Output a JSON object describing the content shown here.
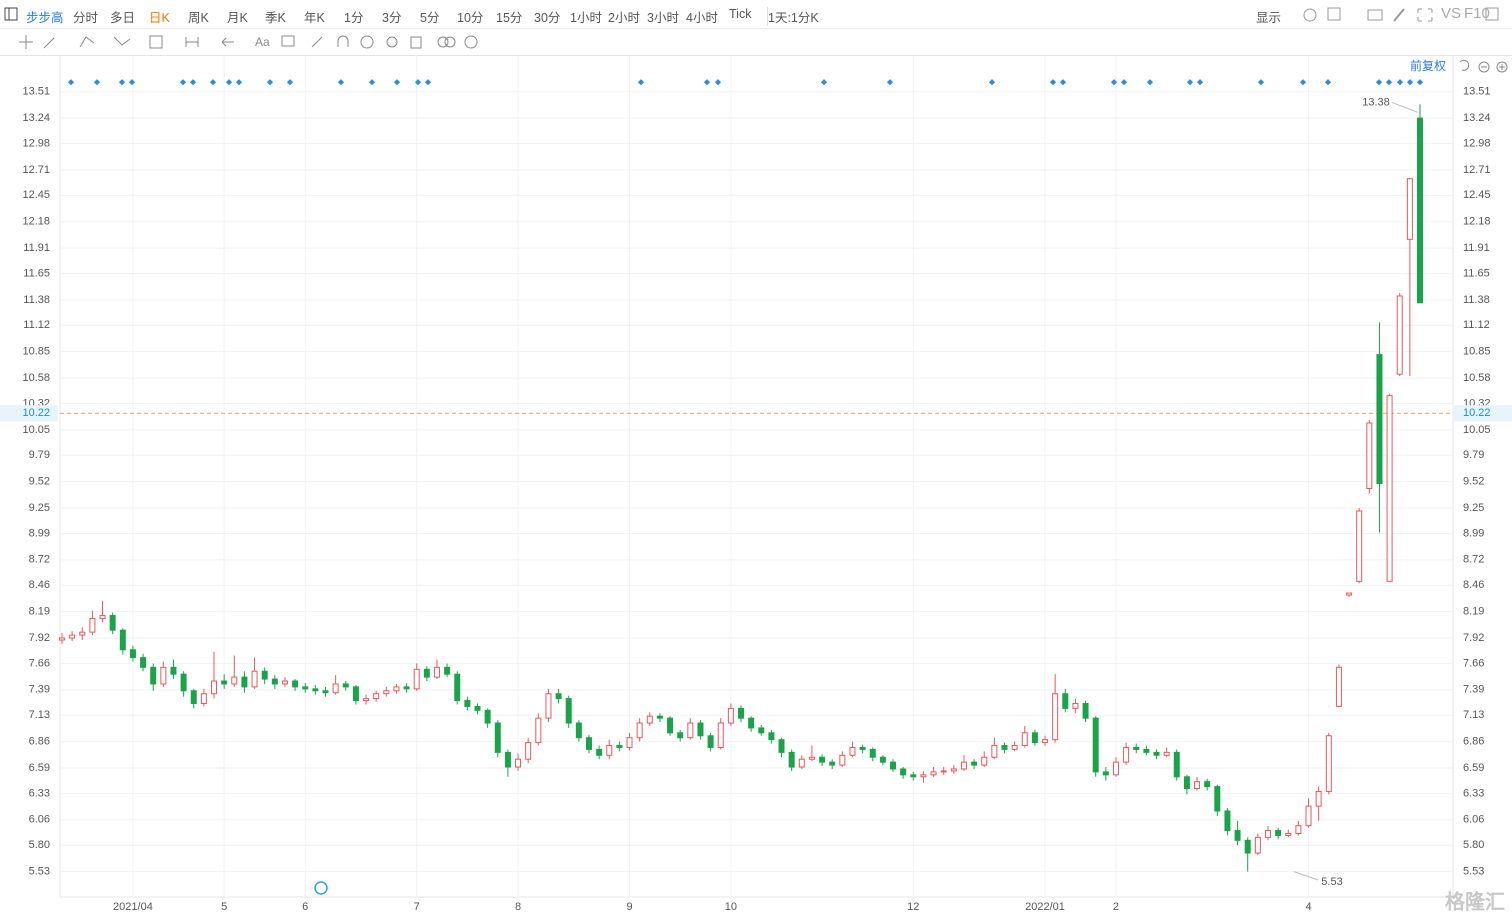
{
  "toolbar": {
    "symbol": "步步高",
    "periods": [
      "分时",
      "多日",
      "日K",
      "周K",
      "月K",
      "季K",
      "年K",
      "1分",
      "3分",
      "5分",
      "10分",
      "15分",
      "30分",
      "1小时",
      "2小时",
      "3小时",
      "4小时",
      "Tick"
    ],
    "interval": "1天:1分K",
    "display": "显示",
    "vs": "VS",
    "f10": "F10"
  },
  "adjust": "前复权",
  "watermark": "格隆汇",
  "chart_data": {
    "type": "candlestick",
    "categories": [
      null,
      null,
      null,
      null,
      null,
      null,
      null,
      "2021/04",
      null,
      null,
      null,
      null,
      null,
      null,
      null,
      null,
      "5",
      null,
      null,
      null,
      null,
      null,
      null,
      null,
      "6",
      null,
      null,
      null,
      null,
      null,
      null,
      null,
      null,
      null,
      null,
      "7",
      null,
      null,
      null,
      null,
      null,
      null,
      null,
      null,
      null,
      "8",
      null,
      null,
      null,
      null,
      null,
      null,
      null,
      null,
      null,
      null,
      "9",
      null,
      null,
      null,
      null,
      null,
      null,
      null,
      null,
      null,
      "10",
      null,
      null,
      null,
      null,
      null,
      null,
      null,
      null,
      null,
      null,
      null,
      null,
      null,
      null,
      null,
      null,
      null,
      "12",
      null,
      null,
      null,
      null,
      null,
      null,
      null,
      null,
      null,
      null,
      null,
      null,
      "2022/01",
      null,
      null,
      null,
      null,
      null,
      null,
      "2",
      null,
      null,
      null,
      null,
      null,
      null,
      null,
      null,
      null,
      null,
      null,
      null,
      null,
      null,
      null,
      null,
      null,
      null,
      "4",
      null,
      null,
      null,
      null,
      null,
      null,
      null,
      null,
      null,
      null,
      null
    ],
    "candles": [
      [
        7.9,
        7.97,
        7.86,
        7.92
      ],
      [
        7.92,
        7.99,
        7.89,
        7.95
      ],
      [
        7.95,
        8.03,
        7.9,
        7.98
      ],
      [
        7.98,
        8.2,
        7.95,
        8.12
      ],
      [
        8.12,
        8.3,
        8.08,
        8.15
      ],
      [
        8.15,
        8.18,
        7.96,
        8.0
      ],
      [
        8.0,
        8.02,
        7.75,
        7.8
      ],
      [
        7.8,
        7.84,
        7.68,
        7.72
      ],
      [
        7.72,
        7.76,
        7.58,
        7.62
      ],
      [
        7.62,
        7.66,
        7.38,
        7.45
      ],
      [
        7.45,
        7.68,
        7.42,
        7.62
      ],
      [
        7.62,
        7.7,
        7.5,
        7.55
      ],
      [
        7.55,
        7.58,
        7.32,
        7.38
      ],
      [
        7.38,
        7.4,
        7.2,
        7.25
      ],
      [
        7.25,
        7.4,
        7.22,
        7.35
      ],
      [
        7.35,
        7.78,
        7.3,
        7.48
      ],
      [
        7.48,
        7.55,
        7.4,
        7.45
      ],
      [
        7.45,
        7.74,
        7.42,
        7.52
      ],
      [
        7.52,
        7.58,
        7.36,
        7.42
      ],
      [
        7.42,
        7.72,
        7.4,
        7.58
      ],
      [
        7.58,
        7.62,
        7.45,
        7.5
      ],
      [
        7.5,
        7.54,
        7.4,
        7.45
      ],
      [
        7.45,
        7.52,
        7.42,
        7.48
      ],
      [
        7.48,
        7.5,
        7.38,
        7.42
      ],
      [
        7.42,
        7.46,
        7.36,
        7.4
      ],
      [
        7.4,
        7.44,
        7.34,
        7.38
      ],
      [
        7.38,
        7.42,
        7.32,
        7.36
      ],
      [
        7.36,
        7.54,
        7.34,
        7.45
      ],
      [
        7.45,
        7.48,
        7.38,
        7.42
      ],
      [
        7.42,
        7.44,
        7.24,
        7.28
      ],
      [
        7.28,
        7.34,
        7.24,
        7.3
      ],
      [
        7.3,
        7.38,
        7.27,
        7.35
      ],
      [
        7.35,
        7.42,
        7.32,
        7.38
      ],
      [
        7.38,
        7.45,
        7.35,
        7.42
      ],
      [
        7.42,
        7.46,
        7.36,
        7.4
      ],
      [
        7.4,
        7.66,
        7.38,
        7.6
      ],
      [
        7.6,
        7.63,
        7.48,
        7.52
      ],
      [
        7.52,
        7.7,
        7.5,
        7.62
      ],
      [
        7.62,
        7.66,
        7.52,
        7.55
      ],
      [
        7.55,
        7.58,
        7.24,
        7.28
      ],
      [
        7.28,
        7.32,
        7.18,
        7.22
      ],
      [
        7.22,
        7.25,
        7.14,
        7.18
      ],
      [
        7.18,
        7.2,
        7.0,
        7.05
      ],
      [
        7.05,
        7.08,
        6.7,
        6.75
      ],
      [
        6.75,
        6.78,
        6.5,
        6.6
      ],
      [
        6.6,
        6.74,
        6.56,
        6.68
      ],
      [
        6.68,
        6.9,
        6.64,
        6.85
      ],
      [
        6.85,
        7.15,
        6.82,
        7.1
      ],
      [
        7.1,
        7.4,
        7.06,
        7.35
      ],
      [
        7.35,
        7.4,
        7.25,
        7.3
      ],
      [
        7.3,
        7.33,
        7.0,
        7.05
      ],
      [
        7.05,
        7.08,
        6.86,
        6.9
      ],
      [
        6.9,
        6.93,
        6.74,
        6.78
      ],
      [
        6.78,
        6.82,
        6.68,
        6.72
      ],
      [
        6.72,
        6.88,
        6.68,
        6.82
      ],
      [
        6.82,
        6.86,
        6.76,
        6.8
      ],
      [
        6.8,
        6.95,
        6.77,
        6.9
      ],
      [
        6.9,
        7.1,
        6.86,
        7.05
      ],
      [
        7.05,
        7.16,
        7.02,
        7.12
      ],
      [
        7.12,
        7.15,
        7.06,
        7.1
      ],
      [
        7.1,
        7.12,
        6.92,
        6.95
      ],
      [
        6.95,
        6.98,
        6.86,
        6.9
      ],
      [
        6.9,
        7.1,
        6.88,
        7.05
      ],
      [
        7.05,
        7.08,
        6.88,
        6.92
      ],
      [
        6.92,
        6.95,
        6.76,
        6.8
      ],
      [
        6.8,
        7.1,
        6.78,
        7.05
      ],
      [
        7.05,
        7.25,
        7.02,
        7.2
      ],
      [
        7.2,
        7.23,
        7.06,
        7.1
      ],
      [
        7.1,
        7.12,
        6.96,
        7.0
      ],
      [
        7.0,
        7.03,
        6.92,
        6.95
      ],
      [
        6.95,
        6.98,
        6.84,
        6.88
      ],
      [
        6.88,
        6.9,
        6.7,
        6.75
      ],
      [
        6.75,
        6.78,
        6.56,
        6.6
      ],
      [
        6.6,
        6.72,
        6.58,
        6.68
      ],
      [
        6.68,
        6.82,
        6.66,
        6.7
      ],
      [
        6.7,
        6.73,
        6.61,
        6.65
      ],
      [
        6.65,
        6.68,
        6.58,
        6.62
      ],
      [
        6.62,
        6.76,
        6.6,
        6.72
      ],
      [
        6.72,
        6.86,
        6.7,
        6.8
      ],
      [
        6.8,
        6.83,
        6.74,
        6.78
      ],
      [
        6.78,
        6.8,
        6.66,
        6.7
      ],
      [
        6.7,
        6.72,
        6.62,
        6.65
      ],
      [
        6.65,
        6.68,
        6.55,
        6.58
      ],
      [
        6.58,
        6.6,
        6.48,
        6.52
      ],
      [
        6.52,
        6.55,
        6.46,
        6.5
      ],
      [
        6.5,
        6.56,
        6.44,
        6.52
      ],
      [
        6.52,
        6.6,
        6.5,
        6.55
      ],
      [
        6.55,
        6.6,
        6.52,
        6.56
      ],
      [
        6.56,
        6.62,
        6.53,
        6.58
      ],
      [
        6.58,
        6.72,
        6.56,
        6.65
      ],
      [
        6.65,
        6.68,
        6.58,
        6.62
      ],
      [
        6.62,
        6.76,
        6.6,
        6.7
      ],
      [
        6.7,
        6.9,
        6.68,
        6.82
      ],
      [
        6.82,
        6.85,
        6.74,
        6.78
      ],
      [
        6.78,
        6.86,
        6.76,
        6.82
      ],
      [
        6.82,
        7.02,
        6.8,
        6.95
      ],
      [
        6.95,
        6.98,
        6.82,
        6.85
      ],
      [
        6.85,
        6.92,
        6.82,
        6.88
      ],
      [
        6.88,
        7.55,
        6.85,
        7.35
      ],
      [
        7.35,
        7.4,
        7.16,
        7.2
      ],
      [
        7.2,
        7.3,
        7.15,
        7.25
      ],
      [
        7.25,
        7.28,
        7.06,
        7.1
      ],
      [
        7.1,
        7.12,
        6.5,
        6.55
      ],
      [
        6.55,
        6.6,
        6.46,
        6.52
      ],
      [
        6.52,
        6.7,
        6.5,
        6.65
      ],
      [
        6.65,
        6.85,
        6.62,
        6.8
      ],
      [
        6.8,
        6.84,
        6.74,
        6.78
      ],
      [
        6.78,
        6.82,
        6.72,
        6.75
      ],
      [
        6.75,
        6.78,
        6.68,
        6.72
      ],
      [
        6.72,
        6.8,
        6.7,
        6.75
      ],
      [
        6.75,
        6.78,
        6.46,
        6.5
      ],
      [
        6.5,
        6.52,
        6.32,
        6.38
      ],
      [
        6.38,
        6.5,
        6.36,
        6.45
      ],
      [
        6.45,
        6.48,
        6.36,
        6.4
      ],
      [
        6.4,
        6.42,
        6.1,
        6.15
      ],
      [
        6.15,
        6.18,
        5.9,
        5.95
      ],
      [
        5.95,
        6.05,
        5.8,
        5.85
      ],
      [
        5.85,
        5.88,
        5.53,
        5.72
      ],
      [
        5.72,
        5.92,
        5.7,
        5.88
      ],
      [
        5.88,
        6.0,
        5.85,
        5.95
      ],
      [
        5.95,
        5.98,
        5.86,
        5.9
      ],
      [
        5.9,
        5.96,
        5.88,
        5.92
      ],
      [
        5.92,
        6.05,
        5.9,
        6.0
      ],
      [
        6.0,
        6.28,
        5.98,
        6.2
      ],
      [
        6.2,
        6.4,
        6.05,
        6.35
      ],
      [
        6.35,
        6.95,
        6.32,
        6.92
      ],
      [
        7.22,
        7.65,
        7.22,
        7.62
      ],
      [
        8.36,
        8.38,
        8.34,
        8.38
      ],
      [
        8.5,
        9.25,
        8.48,
        9.22
      ],
      [
        9.45,
        10.15,
        9.4,
        10.12
      ],
      [
        10.82,
        11.15,
        9.0,
        9.5
      ],
      [
        8.5,
        10.42,
        8.5,
        10.4
      ],
      [
        10.62,
        11.45,
        10.6,
        11.42
      ],
      [
        12.0,
        12.62,
        10.6,
        12.62
      ],
      [
        13.24,
        13.38,
        11.35,
        11.35
      ]
    ],
    "up_color": "#e8575a",
    "down_color": "#1aa34a",
    "ylim": [
      5.27,
      13.63
    ],
    "yticks": [
      5.53,
      {
        "value": 5.8,
        "label": "5.80"
      },
      6.06,
      6.33,
      6.59,
      6.86,
      7.13,
      7.39,
      7.66,
      7.92,
      8.19,
      8.46,
      8.72,
      8.99,
      9.25,
      9.52,
      9.79,
      10.05,
      10.32,
      10.58,
      10.85,
      11.12,
      11.38,
      11.65,
      11.91,
      12.18,
      12.45,
      12.71,
      12.98,
      13.24,
      13.51
    ],
    "grid": true,
    "current_price": 10.22,
    "current_color": "#f0a050",
    "high_label": 13.38,
    "low_label": 5.53
  }
}
